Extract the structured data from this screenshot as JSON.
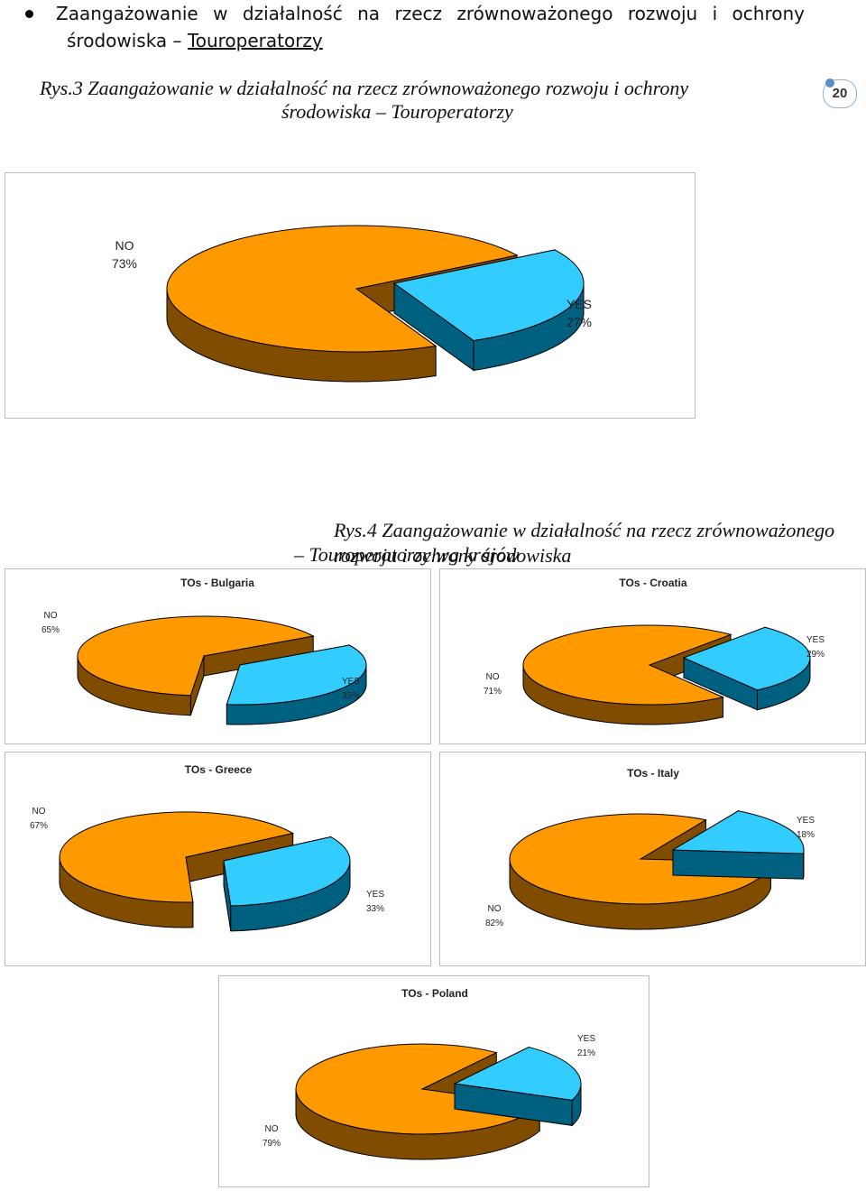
{
  "bullet": {
    "line1": "Zaangażowanie w działalność na rzecz zrównoważonego rozwoju i ochrony",
    "line2_prefix": "środowiska – ",
    "line2_link": "Touroperatorzy"
  },
  "page_number": "20",
  "figure3": {
    "title_line1": "Rys.3 Zaangażowanie w działalność na rzecz zrównoważonego rozwoju i ochrony",
    "title_line2": "środowiska – Touroperatorzy"
  },
  "figure4": {
    "title_line1": "Rys.4 Zaangażowanie w działalność na rzecz zrównoważonego rozwoju i ochrony środowiska",
    "title_line2": "– Touroperatorzy wg krajów"
  },
  "colors": {
    "no": "#FF9900",
    "no_side": "#804C00",
    "yes": "#33CCFF",
    "yes_side": "#006080"
  },
  "chart_data": [
    {
      "type": "pie",
      "title": "",
      "categories": [
        "NO",
        "YES"
      ],
      "values": [
        73,
        27
      ],
      "labels": [
        "NO 73%",
        "YES 27%"
      ]
    },
    {
      "type": "pie",
      "title": "TOs - Bulgaria",
      "categories": [
        "NO",
        "YES"
      ],
      "values": [
        65,
        35
      ]
    },
    {
      "type": "pie",
      "title": "TOs - Croatia",
      "categories": [
        "NO",
        "YES"
      ],
      "values": [
        71,
        29
      ]
    },
    {
      "type": "pie",
      "title": "TOs - Greece",
      "categories": [
        "NO",
        "YES"
      ],
      "values": [
        67,
        33
      ]
    },
    {
      "type": "pie",
      "title": "TOs - Italy",
      "categories": [
        "NO",
        "YES"
      ],
      "values": [
        82,
        18
      ]
    },
    {
      "type": "pie",
      "title": "TOs - Poland",
      "categories": [
        "NO",
        "YES"
      ],
      "values": [
        79,
        21
      ]
    }
  ]
}
